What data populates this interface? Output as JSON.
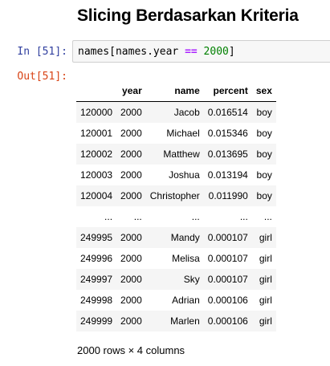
{
  "heading": "Slicing Berdasarkan Kriteria",
  "input_prompt": "In [51]:",
  "output_prompt": "Out[51]:",
  "code": {
    "part1": "names",
    "bracket_open": "[",
    "part2": "names.year ",
    "operator": "==",
    "space": " ",
    "number": "2000",
    "bracket_close": "]"
  },
  "table": {
    "columns": [
      "",
      "year",
      "name",
      "percent",
      "sex"
    ],
    "rows": [
      [
        "120000",
        "2000",
        "Jacob",
        "0.016514",
        "boy"
      ],
      [
        "120001",
        "2000",
        "Michael",
        "0.015346",
        "boy"
      ],
      [
        "120002",
        "2000",
        "Matthew",
        "0.013695",
        "boy"
      ],
      [
        "120003",
        "2000",
        "Joshua",
        "0.013194",
        "boy"
      ],
      [
        "120004",
        "2000",
        "Christopher",
        "0.011990",
        "boy"
      ],
      [
        "...",
        "...",
        "...",
        "...",
        "..."
      ],
      [
        "249995",
        "2000",
        "Mandy",
        "0.000107",
        "girl"
      ],
      [
        "249996",
        "2000",
        "Melisa",
        "0.000107",
        "girl"
      ],
      [
        "249997",
        "2000",
        "Sky",
        "0.000107",
        "girl"
      ],
      [
        "249998",
        "2000",
        "Adrian",
        "0.000106",
        "girl"
      ],
      [
        "249999",
        "2000",
        "Marlen",
        "0.000106",
        "girl"
      ]
    ]
  },
  "shape_text": "2000 rows × 4 columns",
  "colors": {
    "input_prompt": "#303f9f",
    "output_prompt": "#d84315",
    "operator": "#aa22ff",
    "number": "#008000",
    "cell_background": "#f7f7f7"
  }
}
